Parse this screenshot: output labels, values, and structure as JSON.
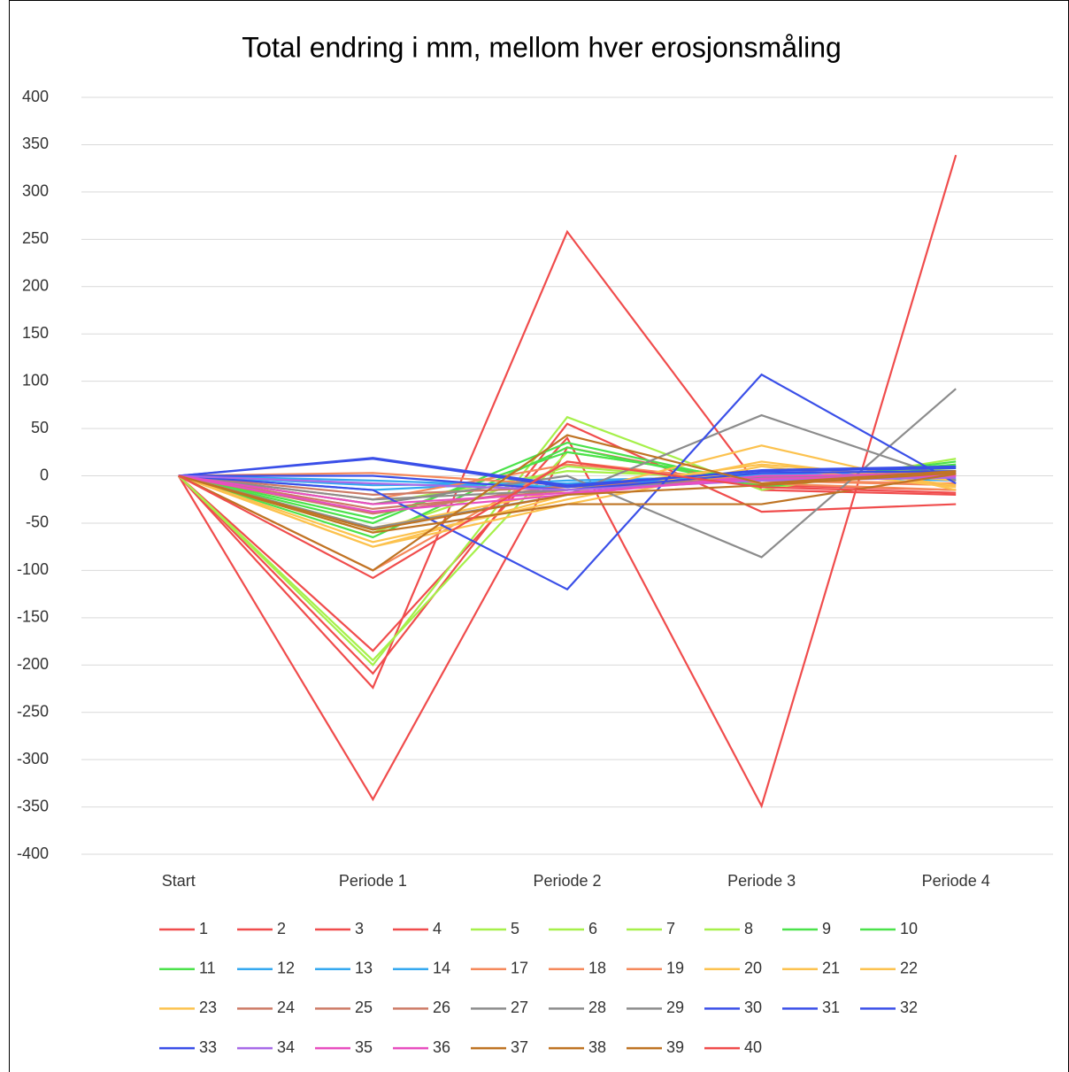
{
  "chart_data": {
    "type": "line",
    "title": "Total endring i mm, mellom hver erosjonsmåling",
    "categories": [
      "Start",
      "Periode 1",
      "Periode 2",
      "Periode 3",
      "Periode 4"
    ],
    "ylim": [
      -400,
      400
    ],
    "yticks": [
      -400,
      -350,
      -300,
      -250,
      -200,
      -150,
      -100,
      -50,
      0,
      50,
      100,
      150,
      200,
      250,
      300,
      350,
      400
    ],
    "grid": true,
    "legend": "bottom",
    "series": [
      {
        "name": "1",
        "color": "#f04c4c",
        "values": [
          0,
          -342,
          30,
          -10,
          -15
        ]
      },
      {
        "name": "2",
        "color": "#f04c4c",
        "values": [
          0,
          -224,
          258,
          -15,
          -20
        ]
      },
      {
        "name": "3",
        "color": "#f04c4c",
        "values": [
          0,
          -209,
          55,
          -38,
          -30
        ]
      },
      {
        "name": "4",
        "color": "#f04c4c",
        "values": [
          0,
          -185,
          40,
          -349,
          339
        ]
      },
      {
        "name": "5",
        "color": "#a6f04a",
        "values": [
          0,
          -200,
          62,
          -15,
          18
        ]
      },
      {
        "name": "6",
        "color": "#a6f04a",
        "values": [
          0,
          -195,
          25,
          -5,
          10
        ]
      },
      {
        "name": "7",
        "color": "#a6f04a",
        "values": [
          0,
          -60,
          10,
          -8,
          5
        ]
      },
      {
        "name": "8",
        "color": "#a6f04a",
        "values": [
          0,
          -30,
          5,
          -3,
          8
        ]
      },
      {
        "name": "9",
        "color": "#4be24b",
        "values": [
          0,
          -50,
          35,
          -10,
          15
        ]
      },
      {
        "name": "10",
        "color": "#4be24b",
        "values": [
          0,
          -45,
          25,
          -5,
          12
        ]
      },
      {
        "name": "11",
        "color": "#4be24b",
        "values": [
          0,
          -65,
          30,
          -12,
          10
        ]
      },
      {
        "name": "12",
        "color": "#33a8f0",
        "values": [
          0,
          -15,
          -5,
          0,
          -5
        ]
      },
      {
        "name": "13",
        "color": "#33a8f0",
        "values": [
          0,
          -10,
          -8,
          2,
          -3
        ]
      },
      {
        "name": "14",
        "color": "#33a8f0",
        "values": [
          0,
          -5,
          -12,
          3,
          2
        ]
      },
      {
        "name": "17",
        "color": "#f5885a",
        "values": [
          0,
          -100,
          15,
          -8,
          -15
        ]
      },
      {
        "name": "18",
        "color": "#f5885a",
        "values": [
          0,
          -25,
          12,
          -5,
          -10
        ]
      },
      {
        "name": "19",
        "color": "#f5885a",
        "values": [
          0,
          3,
          -10,
          -5,
          -8
        ]
      },
      {
        "name": "20",
        "color": "#fcc24e",
        "values": [
          0,
          -75,
          -20,
          32,
          -15
        ]
      },
      {
        "name": "21",
        "color": "#fcc24e",
        "values": [
          0,
          -70,
          -25,
          15,
          -10
        ]
      },
      {
        "name": "22",
        "color": "#fcc24e",
        "values": [
          0,
          -55,
          -15,
          12,
          -5
        ]
      },
      {
        "name": "23",
        "color": "#fcc24e",
        "values": [
          0,
          -75,
          -30,
          10,
          -12
        ]
      },
      {
        "name": "24",
        "color": "#cd7a66",
        "values": [
          0,
          -40,
          -10,
          -5,
          0
        ]
      },
      {
        "name": "25",
        "color": "#cd7a66",
        "values": [
          0,
          -35,
          -15,
          -3,
          5
        ]
      },
      {
        "name": "26",
        "color": "#cd7a66",
        "values": [
          0,
          -20,
          -12,
          -2,
          3
        ]
      },
      {
        "name": "27",
        "color": "#8c8c8c",
        "values": [
          0,
          -30,
          0,
          -86,
          92
        ]
      },
      {
        "name": "28",
        "color": "#8c8c8c",
        "values": [
          0,
          -55,
          -20,
          64,
          -5
        ]
      },
      {
        "name": "29",
        "color": "#8c8c8c",
        "values": [
          0,
          -25,
          -15,
          -2,
          2
        ]
      },
      {
        "name": "30",
        "color": "#3a4fe8",
        "values": [
          0,
          19,
          -10,
          5,
          8
        ]
      },
      {
        "name": "31",
        "color": "#3a4fe8",
        "values": [
          0,
          -15,
          -120,
          107,
          -8
        ]
      },
      {
        "name": "32",
        "color": "#3a4fe8",
        "values": [
          0,
          0,
          -15,
          3,
          5
        ]
      },
      {
        "name": "33",
        "color": "#3a4fe8",
        "values": [
          0,
          18,
          -12,
          6,
          10
        ]
      },
      {
        "name": "34",
        "color": "#a86ae8",
        "values": [
          0,
          -8,
          -15,
          -5,
          -2
        ]
      },
      {
        "name": "35",
        "color": "#e84fc0",
        "values": [
          0,
          -30,
          -18,
          -3,
          0
        ]
      },
      {
        "name": "36",
        "color": "#e84fc0",
        "values": [
          0,
          -38,
          -20,
          0,
          2
        ]
      },
      {
        "name": "37",
        "color": "#bf7424",
        "values": [
          0,
          -100,
          43,
          -8,
          5
        ]
      },
      {
        "name": "38",
        "color": "#bf7424",
        "values": [
          0,
          -60,
          -30,
          -30,
          2
        ]
      },
      {
        "name": "39",
        "color": "#bf7424",
        "values": [
          0,
          -57,
          -20,
          -10,
          3
        ]
      },
      {
        "name": "40",
        "color": "#f04c4c",
        "values": [
          0,
          -108,
          15,
          -12,
          -18
        ]
      }
    ]
  }
}
